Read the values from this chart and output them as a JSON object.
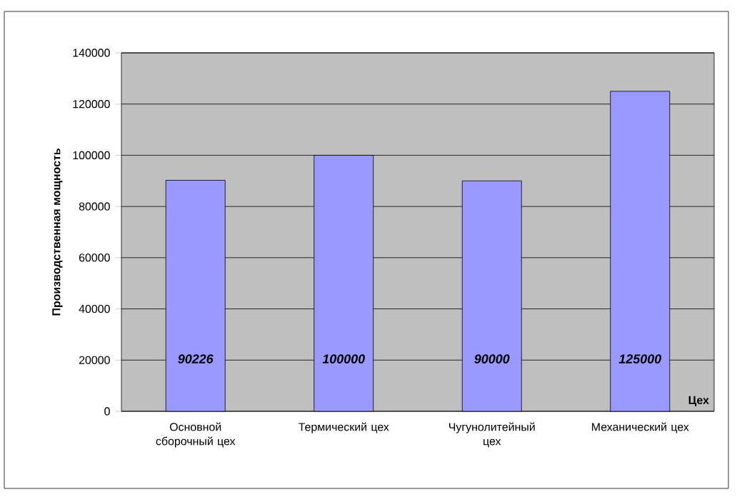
{
  "chart_data": {
    "type": "bar",
    "xlabel": "Цех",
    "ylabel": "Производственная мощность",
    "categories": [
      "Основной сборочный цех",
      "Термический цех",
      "Чугунолитейный цех",
      "Механический цех"
    ],
    "values": [
      90226,
      100000,
      90000,
      125000
    ],
    "color": "#9999ff",
    "ylim": [
      0,
      140000
    ],
    "yticks": [
      0,
      20000,
      40000,
      60000,
      80000,
      100000,
      120000,
      140000
    ],
    "grid": "y",
    "data_labels": true
  }
}
